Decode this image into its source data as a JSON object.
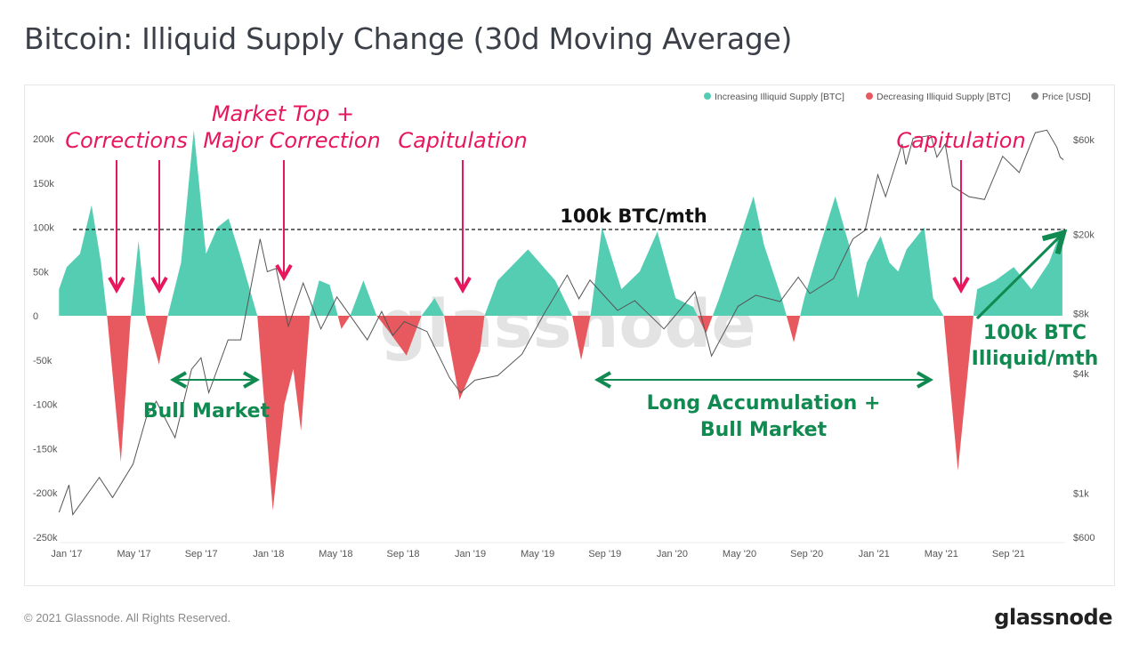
{
  "title": "Bitcoin: Illiquid Supply Change (30d Moving Average)",
  "footer": {
    "copyright": "© 2021 Glassnode. All Rights Reserved.",
    "logo": "glassnode"
  },
  "watermark": "glassnode",
  "colors": {
    "positive": "#55cdb3",
    "negative": "#e8595f",
    "price": "#555555",
    "annotation_pink": "#e8175d",
    "annotation_green": "#108a50"
  },
  "chart_data": {
    "type": "area",
    "title": "Bitcoin: Illiquid Supply Change (30d Moving Average)",
    "legend": {
      "placement": "top-right",
      "entries": [
        "Increasing Illiquid Supply [BTC]",
        "Decreasing Illiquid Supply [BTC]",
        "Price [USD]"
      ]
    },
    "x_ticks": [
      "Jan '17",
      "May '17",
      "Sep '17",
      "Jan '18",
      "May '18",
      "Sep '18",
      "Jan '19",
      "May '19",
      "Sep '19",
      "Jan '20",
      "May '20",
      "Sep '20",
      "Jan '21",
      "May '21",
      "Sep '21"
    ],
    "y_left": {
      "ticks": [
        "200k",
        "150k",
        "100k",
        "50k",
        "0",
        "-50k",
        "-100k",
        "-150k",
        "-200k",
        "-250k"
      ],
      "range": [
        -250000,
        200000
      ]
    },
    "y_right": {
      "scale": "log",
      "ticks": [
        "$60k",
        "$20k",
        "$8k",
        "$4k",
        "$1k",
        "$600"
      ],
      "range": [
        600,
        60000
      ]
    },
    "grid": false,
    "supply_change": [
      [
        "2016-12-18",
        30000
      ],
      [
        "2017-01-01",
        55000
      ],
      [
        "2017-01-25",
        70000
      ],
      [
        "2017-02-15",
        125000
      ],
      [
        "2017-03-04",
        60000
      ],
      [
        "2017-03-15",
        0
      ],
      [
        "2017-04-09",
        -165000
      ],
      [
        "2017-04-27",
        0
      ],
      [
        "2017-05-11",
        85000
      ],
      [
        "2017-05-24",
        0
      ],
      [
        "2017-06-17",
        -55000
      ],
      [
        "2017-07-03",
        0
      ],
      [
        "2017-07-27",
        60000
      ],
      [
        "2017-08-19",
        210000
      ],
      [
        "2017-09-10",
        70000
      ],
      [
        "2017-10-01",
        100000
      ],
      [
        "2017-10-21",
        110000
      ],
      [
        "2017-11-10",
        70000
      ],
      [
        "2017-12-12",
        0
      ],
      [
        "2018-01-09",
        -220000
      ],
      [
        "2018-01-30",
        -100000
      ],
      [
        "2018-02-15",
        -60000
      ],
      [
        "2018-03-01",
        -130000
      ],
      [
        "2018-03-17",
        0
      ],
      [
        "2018-04-03",
        40000
      ],
      [
        "2018-04-22",
        35000
      ],
      [
        "2018-05-13",
        -15000
      ],
      [
        "2018-05-29",
        0
      ],
      [
        "2018-06-22",
        40000
      ],
      [
        "2018-07-16",
        0
      ],
      [
        "2018-08-10",
        -20000
      ],
      [
        "2018-09-08",
        -45000
      ],
      [
        "2018-10-05",
        0
      ],
      [
        "2018-10-29",
        20000
      ],
      [
        "2018-11-15",
        0
      ],
      [
        "2018-12-13",
        -95000
      ],
      [
        "2019-01-19",
        -40000
      ],
      [
        "2019-01-27",
        0
      ],
      [
        "2019-02-20",
        40000
      ],
      [
        "2019-04-16",
        75000
      ],
      [
        "2019-06-04",
        40000
      ],
      [
        "2019-07-05",
        0
      ],
      [
        "2019-07-21",
        -50000
      ],
      [
        "2019-08-07",
        0
      ],
      [
        "2019-08-28",
        100000
      ],
      [
        "2019-10-02",
        30000
      ],
      [
        "2019-11-04",
        50000
      ],
      [
        "2019-12-06",
        95000
      ],
      [
        "2020-01-08",
        20000
      ],
      [
        "2020-02-09",
        10000
      ],
      [
        "2020-03-03",
        -20000
      ],
      [
        "2020-03-27",
        20000
      ],
      [
        "2020-04-29",
        80000
      ],
      [
        "2020-05-28",
        135000
      ],
      [
        "2020-06-16",
        80000
      ],
      [
        "2020-07-18",
        20000
      ],
      [
        "2020-08-09",
        -30000
      ],
      [
        "2020-08-28",
        20000
      ],
      [
        "2020-09-21",
        70000
      ],
      [
        "2020-10-23",
        135000
      ],
      [
        "2020-11-17",
        80000
      ],
      [
        "2020-12-03",
        20000
      ],
      [
        "2020-12-19",
        60000
      ],
      [
        "2021-01-13",
        90000
      ],
      [
        "2021-01-29",
        60000
      ],
      [
        "2021-02-14",
        50000
      ],
      [
        "2021-03-01",
        75000
      ],
      [
        "2021-04-02",
        100000
      ],
      [
        "2021-04-18",
        20000
      ],
      [
        "2021-05-07",
        0
      ],
      [
        "2021-06-02",
        -175000
      ],
      [
        "2021-06-30",
        0
      ],
      [
        "2021-07-07",
        30000
      ],
      [
        "2021-08-09",
        40000
      ],
      [
        "2021-09-11",
        55000
      ],
      [
        "2021-10-13",
        30000
      ],
      [
        "2021-11-14",
        60000
      ],
      [
        "2021-12-08",
        100000
      ]
    ],
    "price_usd": [
      [
        "2016-12-18",
        800
      ],
      [
        "2017-01-05",
        1100
      ],
      [
        "2017-01-12",
        780
      ],
      [
        "2017-03-01",
        1200
      ],
      [
        "2017-03-25",
        950
      ],
      [
        "2017-05-01",
        1400
      ],
      [
        "2017-05-25",
        2400
      ],
      [
        "2017-06-12",
        2900
      ],
      [
        "2017-07-16",
        1900
      ],
      [
        "2017-08-15",
        4200
      ],
      [
        "2017-09-01",
        4800
      ],
      [
        "2017-09-15",
        3200
      ],
      [
        "2017-10-20",
        5900
      ],
      [
        "2017-11-12",
        5900
      ],
      [
        "2017-12-17",
        19000
      ],
      [
        "2017-12-30",
        13000
      ],
      [
        "2018-01-15",
        13500
      ],
      [
        "2018-02-06",
        6900
      ],
      [
        "2018-03-05",
        11400
      ],
      [
        "2018-04-06",
        6700
      ],
      [
        "2018-05-05",
        9700
      ],
      [
        "2018-06-29",
        5900
      ],
      [
        "2018-07-25",
        8200
      ],
      [
        "2018-08-14",
        6200
      ],
      [
        "2018-09-04",
        7300
      ],
      [
        "2018-10-15",
        6500
      ],
      [
        "2018-11-25",
        3800
      ],
      [
        "2018-12-15",
        3200
      ],
      [
        "2019-01-10",
        3700
      ],
      [
        "2019-02-20",
        3900
      ],
      [
        "2019-04-05",
        5000
      ],
      [
        "2019-05-15",
        8000
      ],
      [
        "2019-06-26",
        12500
      ],
      [
        "2019-07-17",
        9500
      ],
      [
        "2019-08-06",
        11800
      ],
      [
        "2019-09-25",
        8300
      ],
      [
        "2019-10-26",
        9300
      ],
      [
        "2019-12-18",
        6700
      ],
      [
        "2020-02-12",
        10300
      ],
      [
        "2020-03-13",
        4900
      ],
      [
        "2020-04-30",
        8700
      ],
      [
        "2020-06-01",
        9900
      ],
      [
        "2020-07-15",
        9200
      ],
      [
        "2020-08-17",
        12200
      ],
      [
        "2020-09-07",
        10100
      ],
      [
        "2020-10-20",
        12000
      ],
      [
        "2020-11-24",
        19000
      ],
      [
        "2020-12-16",
        21000
      ],
      [
        "2021-01-08",
        40000
      ],
      [
        "2021-01-22",
        31000
      ],
      [
        "2021-02-21",
        57000
      ],
      [
        "2021-02-28",
        45000
      ],
      [
        "2021-03-13",
        61000
      ],
      [
        "2021-04-14",
        63000
      ],
      [
        "2021-04-25",
        49000
      ],
      [
        "2021-05-10",
        57000
      ],
      [
        "2021-05-23",
        35000
      ],
      [
        "2021-06-22",
        31000
      ],
      [
        "2021-07-20",
        30000
      ],
      [
        "2021-08-22",
        49500
      ],
      [
        "2021-09-21",
        41000
      ],
      [
        "2021-10-20",
        65000
      ],
      [
        "2021-11-10",
        67000
      ],
      [
        "2021-11-28",
        55000
      ],
      [
        "2021-12-04",
        49000
      ],
      [
        "2021-12-10",
        47500
      ]
    ],
    "reference_line": {
      "value": 100000,
      "label": "100k BTC/mth"
    }
  },
  "annotations": {
    "corrections": "Corrections",
    "market_top_1": "Market Top +",
    "market_top_2": "Major Correction",
    "capitulation_1": "Capitulation",
    "capitulation_2": "Capitulation",
    "reference": "100k BTC/mth",
    "bull_market": "Bull Market",
    "long_acc_1": "Long Accumulation +",
    "long_acc_2": "Bull Market",
    "illiquid_1": "100k BTC",
    "illiquid_2": "Illiquid/mth"
  }
}
